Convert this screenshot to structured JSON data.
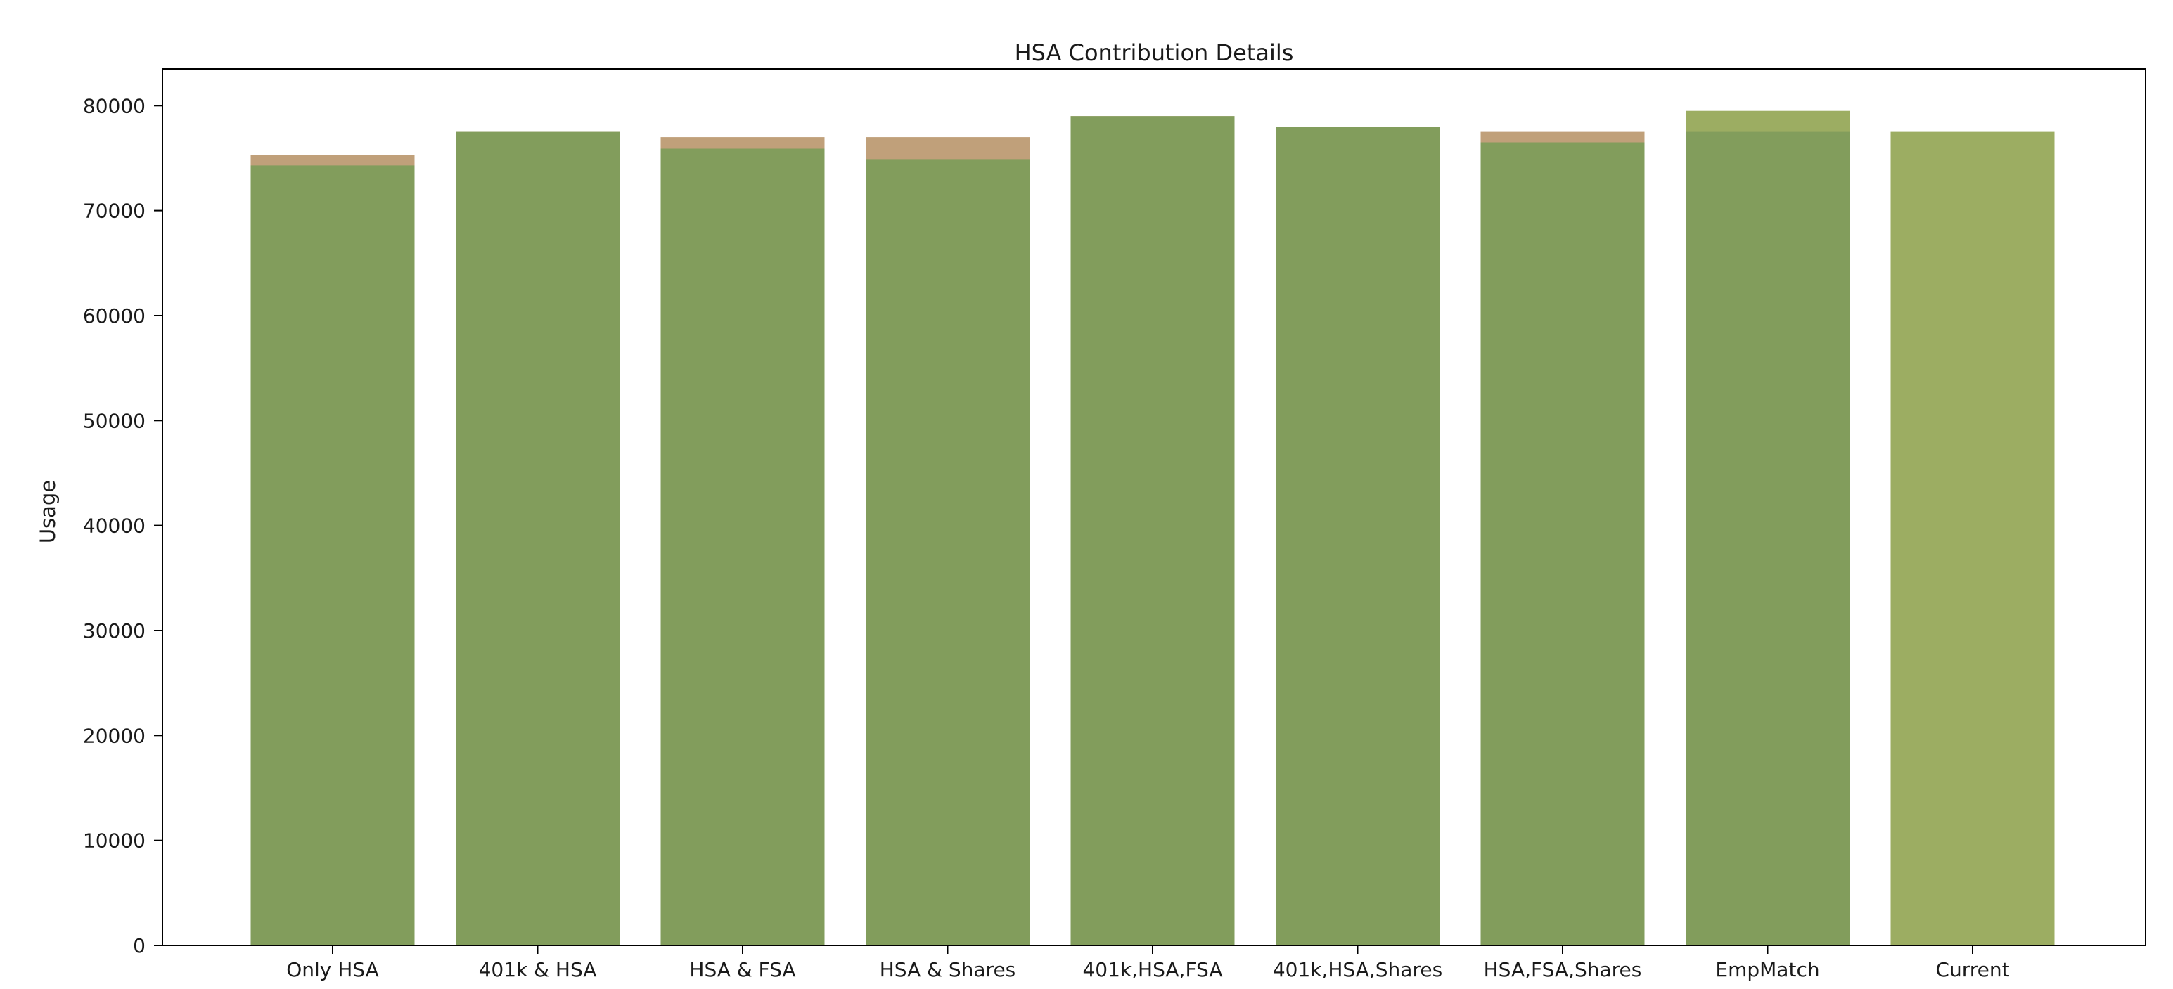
{
  "chart_data": {
    "type": "bar",
    "title": "HSA Contribution Details",
    "xlabel": "",
    "ylabel": "Usage",
    "ylim": [
      0,
      83500
    ],
    "yticks": [
      0,
      10000,
      20000,
      30000,
      40000,
      50000,
      60000,
      70000,
      80000
    ],
    "categories": [
      "Only HSA",
      "401k & HSA",
      "HSA & FSA",
      "HSA & Shares",
      "401k,HSA,FSA",
      "401k,HSA,Shares",
      "HSA,FSA,Shares",
      "EmpMatch",
      "Current"
    ],
    "series": [
      {
        "color": "#c0a07a",
        "values": [
          75300,
          77500,
          77000,
          77000,
          79000,
          78000,
          77500,
          77500,
          null
        ]
      },
      {
        "color": "#9cad62",
        "values": [
          null,
          null,
          null,
          null,
          null,
          null,
          null,
          79500,
          77500
        ]
      },
      {
        "color": "#829d5c",
        "values": [
          74300,
          77500,
          75900,
          74900,
          79000,
          78000,
          76500,
          77500,
          null
        ]
      }
    ],
    "grid": false,
    "legend": "none"
  }
}
